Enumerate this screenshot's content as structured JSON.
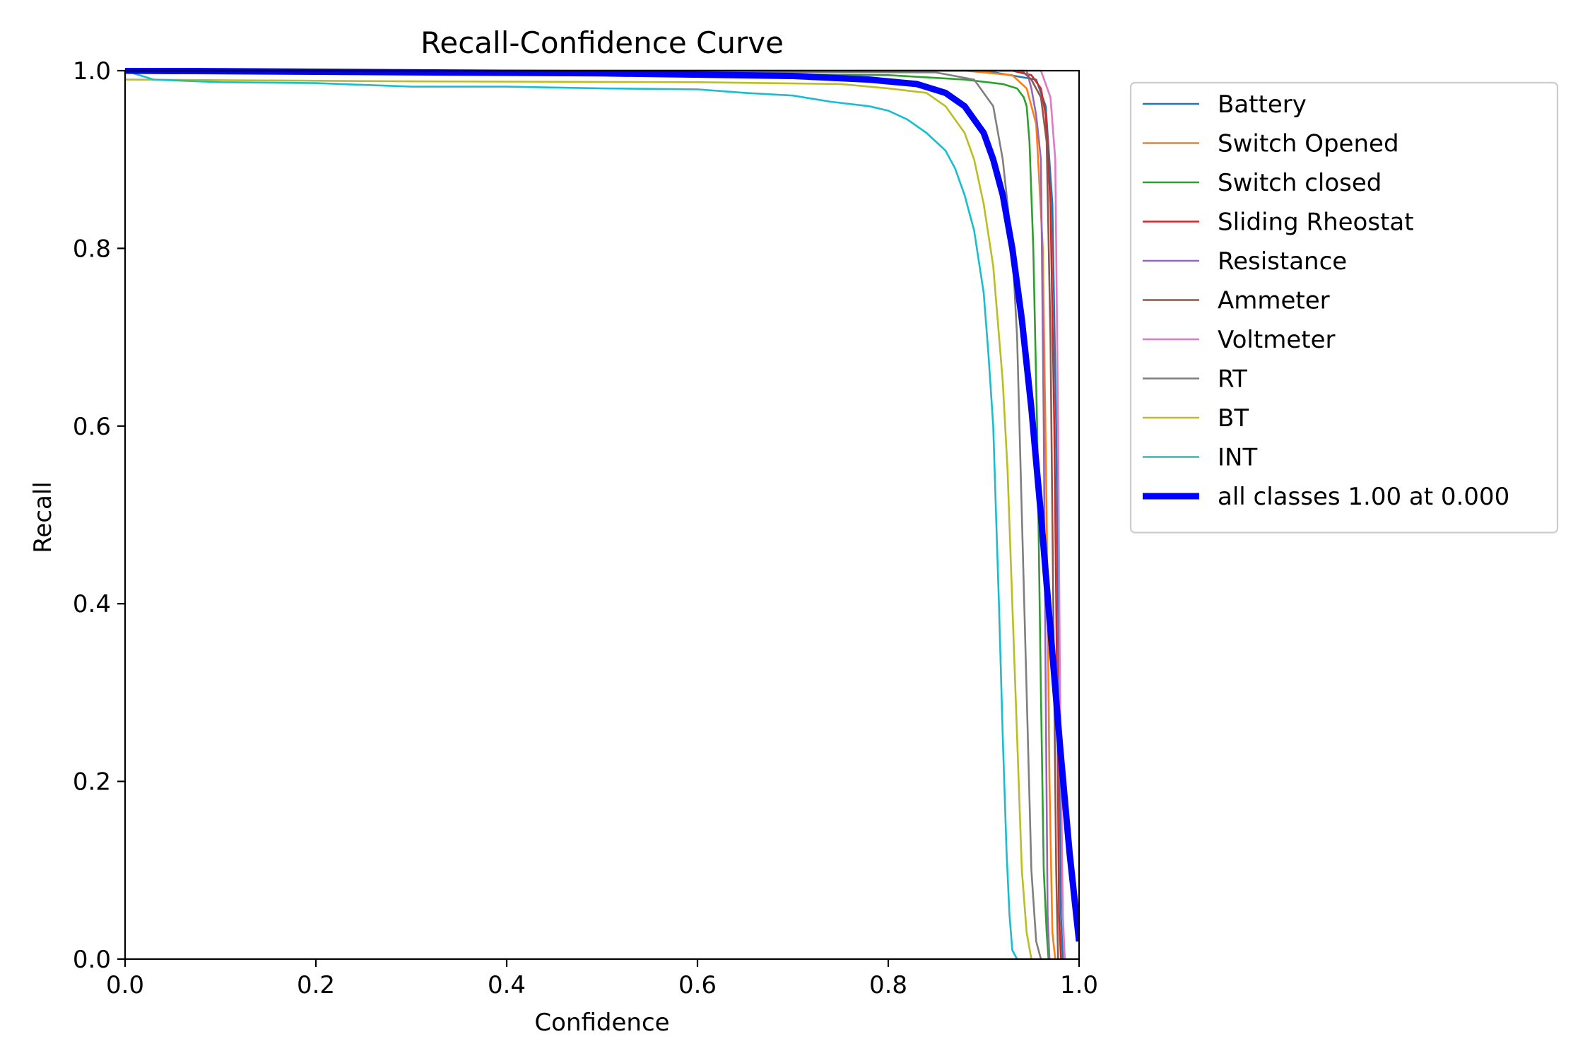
{
  "chart_data": {
    "type": "line",
    "title": "Recall-Confidence Curve",
    "xlabel": "Confidence",
    "ylabel": "Recall",
    "xlim": [
      0.0,
      1.0
    ],
    "ylim": [
      0.0,
      1.0
    ],
    "xticks": [
      "0.0",
      "0.2",
      "0.4",
      "0.6",
      "0.8",
      "1.0"
    ],
    "yticks": [
      "0.0",
      "0.2",
      "0.4",
      "0.6",
      "0.8",
      "1.0"
    ],
    "grid": false,
    "legend_position": "outside-right-top",
    "series": [
      {
        "name": "Battery",
        "color": "#1f77b4",
        "points": [
          [
            0,
            1.0
          ],
          [
            0.9,
            1.0
          ],
          [
            0.955,
            0.99
          ],
          [
            0.965,
            0.96
          ],
          [
            0.972,
            0.85
          ],
          [
            0.976,
            0.6
          ],
          [
            0.979,
            0.3
          ],
          [
            0.981,
            0.05
          ],
          [
            0.983,
            0.0
          ]
        ]
      },
      {
        "name": "Switch Opened",
        "color": "#ff7f0e",
        "points": [
          [
            0,
            1.0
          ],
          [
            0.88,
            1.0
          ],
          [
            0.93,
            0.995
          ],
          [
            0.945,
            0.98
          ],
          [
            0.955,
            0.94
          ],
          [
            0.962,
            0.8
          ],
          [
            0.966,
            0.5
          ],
          [
            0.969,
            0.2
          ],
          [
            0.972,
            0.03
          ],
          [
            0.975,
            0.0
          ]
        ]
      },
      {
        "name": "Switch closed",
        "color": "#2ca02c",
        "points": [
          [
            0,
            1.0
          ],
          [
            0.8,
            0.995
          ],
          [
            0.88,
            0.99
          ],
          [
            0.92,
            0.985
          ],
          [
            0.935,
            0.98
          ],
          [
            0.942,
            0.97
          ],
          [
            0.945,
            0.96
          ],
          [
            0.948,
            0.92
          ],
          [
            0.952,
            0.8
          ],
          [
            0.956,
            0.6
          ],
          [
            0.96,
            0.3
          ],
          [
            0.963,
            0.1
          ],
          [
            0.966,
            0.03
          ],
          [
            0.968,
            0.0
          ]
        ]
      },
      {
        "name": "Sliding Rheostat",
        "color": "#d62728",
        "points": [
          [
            0,
            1.0
          ],
          [
            0.93,
            1.0
          ],
          [
            0.95,
            0.995
          ],
          [
            0.96,
            0.98
          ],
          [
            0.965,
            0.95
          ],
          [
            0.97,
            0.85
          ],
          [
            0.974,
            0.6
          ],
          [
            0.977,
            0.3
          ],
          [
            0.979,
            0.05
          ],
          [
            0.981,
            0.0
          ]
        ]
      },
      {
        "name": "Resistance",
        "color": "#9467bd",
        "points": [
          [
            0,
            1.0
          ],
          [
            0.945,
            1.0
          ],
          [
            0.95,
            0.98
          ],
          [
            0.955,
            0.95
          ],
          [
            0.96,
            0.9
          ],
          [
            0.963,
            0.6
          ],
          [
            0.965,
            0.3
          ],
          [
            0.967,
            0.05
          ],
          [
            0.969,
            0.0
          ]
        ]
      },
      {
        "name": "Ammeter",
        "color": "#8c564b",
        "points": [
          [
            0,
            1.0
          ],
          [
            0.94,
            1.0
          ],
          [
            0.95,
            0.99
          ],
          [
            0.96,
            0.97
          ],
          [
            0.966,
            0.92
          ],
          [
            0.97,
            0.7
          ],
          [
            0.973,
            0.4
          ],
          [
            0.976,
            0.1
          ],
          [
            0.978,
            0.0
          ]
        ]
      },
      {
        "name": "Voltmeter",
        "color": "#e377c2",
        "points": [
          [
            0,
            1.0
          ],
          [
            0.96,
            1.0
          ],
          [
            0.97,
            0.97
          ],
          [
            0.975,
            0.9
          ],
          [
            0.978,
            0.6
          ],
          [
            0.98,
            0.3
          ],
          [
            0.983,
            0.05
          ],
          [
            0.985,
            0.0
          ]
        ]
      },
      {
        "name": "RT",
        "color": "#7f7f7f",
        "points": [
          [
            0,
            1.0
          ],
          [
            0.85,
            0.998
          ],
          [
            0.89,
            0.99
          ],
          [
            0.91,
            0.96
          ],
          [
            0.92,
            0.9
          ],
          [
            0.93,
            0.8
          ],
          [
            0.935,
            0.7
          ],
          [
            0.94,
            0.5
          ],
          [
            0.945,
            0.3
          ],
          [
            0.95,
            0.1
          ],
          [
            0.955,
            0.02
          ],
          [
            0.96,
            0.0
          ]
        ]
      },
      {
        "name": "BT",
        "color": "#bcbd22",
        "points": [
          [
            0,
            0.99
          ],
          [
            0.3,
            0.988
          ],
          [
            0.6,
            0.987
          ],
          [
            0.75,
            0.985
          ],
          [
            0.8,
            0.98
          ],
          [
            0.84,
            0.975
          ],
          [
            0.86,
            0.96
          ],
          [
            0.88,
            0.93
          ],
          [
            0.89,
            0.9
          ],
          [
            0.9,
            0.85
          ],
          [
            0.91,
            0.78
          ],
          [
            0.92,
            0.65
          ],
          [
            0.925,
            0.55
          ],
          [
            0.93,
            0.4
          ],
          [
            0.935,
            0.25
          ],
          [
            0.94,
            0.1
          ],
          [
            0.945,
            0.03
          ],
          [
            0.95,
            0.0
          ]
        ]
      },
      {
        "name": "INT",
        "color": "#17becf",
        "points": [
          [
            0,
            1.0
          ],
          [
            0.03,
            0.99
          ],
          [
            0.1,
            0.987
          ],
          [
            0.2,
            0.986
          ],
          [
            0.3,
            0.982
          ],
          [
            0.4,
            0.982
          ],
          [
            0.5,
            0.98
          ],
          [
            0.6,
            0.979
          ],
          [
            0.65,
            0.975
          ],
          [
            0.7,
            0.972
          ],
          [
            0.74,
            0.965
          ],
          [
            0.78,
            0.96
          ],
          [
            0.8,
            0.955
          ],
          [
            0.82,
            0.945
          ],
          [
            0.84,
            0.93
          ],
          [
            0.86,
            0.91
          ],
          [
            0.87,
            0.89
          ],
          [
            0.88,
            0.86
          ],
          [
            0.89,
            0.82
          ],
          [
            0.9,
            0.75
          ],
          [
            0.905,
            0.68
          ],
          [
            0.91,
            0.6
          ],
          [
            0.913,
            0.5
          ],
          [
            0.916,
            0.4
          ],
          [
            0.92,
            0.25
          ],
          [
            0.924,
            0.12
          ],
          [
            0.927,
            0.05
          ],
          [
            0.93,
            0.01
          ],
          [
            0.935,
            0.0
          ]
        ]
      },
      {
        "name": "all classes 1.00 at 0.000",
        "color": "#0000ff",
        "thick": true,
        "points": [
          [
            0,
            1.0
          ],
          [
            0.5,
            0.997
          ],
          [
            0.7,
            0.994
          ],
          [
            0.78,
            0.99
          ],
          [
            0.83,
            0.985
          ],
          [
            0.86,
            0.975
          ],
          [
            0.88,
            0.96
          ],
          [
            0.9,
            0.93
          ],
          [
            0.91,
            0.9
          ],
          [
            0.92,
            0.86
          ],
          [
            0.93,
            0.8
          ],
          [
            0.94,
            0.72
          ],
          [
            0.95,
            0.62
          ],
          [
            0.96,
            0.5
          ],
          [
            0.97,
            0.37
          ],
          [
            0.98,
            0.24
          ],
          [
            0.99,
            0.12
          ],
          [
            1.0,
            0.02
          ]
        ]
      }
    ]
  }
}
